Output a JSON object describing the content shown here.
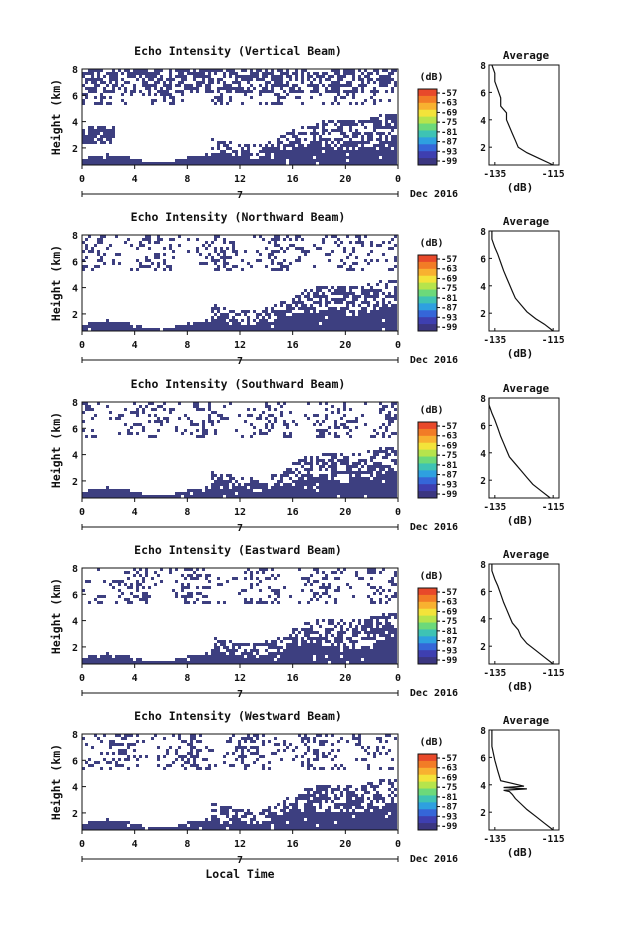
{
  "figure": {
    "xlabel": "Local Time",
    "date_label": "Dec 2016",
    "day_label": "7",
    "x_ticks": [
      "0",
      "4",
      "8",
      "12",
      "16",
      "20",
      "0"
    ],
    "colorbar_unit": "(dB)",
    "colorbar_ticks": [
      "-57",
      "-63",
      "-69",
      "-75",
      "-81",
      "-87",
      "-93",
      "-99"
    ],
    "colorbar_colors": [
      "#e8492a",
      "#f27c26",
      "#f8b130",
      "#f3e33a",
      "#b6e44c",
      "#6cd97a",
      "#3ec3b4",
      "#2ea0e0",
      "#3566d8",
      "#3e3fb0",
      "#3b3680"
    ],
    "avg_title": "Average",
    "avg_xticks": [
      "-135",
      "-115"
    ],
    "avg_xlabel": "(dB)",
    "echo_color": "#3d3f80"
  },
  "chart_data": [
    {
      "type": "heatmap",
      "title": "Echo Intensity (Vertical Beam)",
      "ylabel": "Height (km)",
      "y_ticks": [
        "2",
        "4",
        "6",
        "8"
      ],
      "xlim": [
        0,
        24
      ],
      "ylim": [
        0.7,
        8
      ],
      "avg": {
        "x": [
          -115,
          -120,
          -124,
          -127,
          -128,
          -129,
          -130,
          -131,
          -131,
          -133,
          -133,
          -134,
          -135,
          -135,
          -136
        ],
        "y": [
          0.7,
          1.2,
          1.6,
          2.0,
          2.5,
          3.0,
          3.5,
          4.0,
          4.5,
          5.0,
          5.6,
          6.2,
          6.8,
          7.4,
          8.0
        ]
      }
    },
    {
      "type": "heatmap",
      "title": "Echo Intensity (Northward Beam)",
      "ylabel": "Height (km)",
      "y_ticks": [
        "2",
        "4",
        "6",
        "8"
      ],
      "xlim": [
        0,
        24
      ],
      "ylim": [
        0.7,
        8
      ],
      "avg": {
        "x": [
          -115,
          -118,
          -121,
          -124,
          -126,
          -128,
          -129,
          -130,
          -131,
          -132,
          -133,
          -134,
          -135,
          -136,
          -136
        ],
        "y": [
          0.7,
          1.2,
          1.6,
          2.1,
          2.6,
          3.1,
          3.6,
          4.1,
          4.6,
          5.1,
          5.7,
          6.3,
          6.8,
          7.4,
          8.0
        ]
      }
    },
    {
      "type": "heatmap",
      "title": "Echo Intensity (Southward Beam)",
      "ylabel": "Height (km)",
      "y_ticks": [
        "2",
        "4",
        "6",
        "8"
      ],
      "xlim": [
        0,
        24
      ],
      "ylim": [
        0.7,
        8
      ],
      "avg": {
        "x": [
          -116,
          -119,
          -122,
          -124,
          -126,
          -128,
          -130,
          -131,
          -132,
          -133,
          -134,
          -135,
          -136,
          -137,
          -137
        ],
        "y": [
          0.7,
          1.2,
          1.7,
          2.2,
          2.7,
          3.2,
          3.7,
          4.2,
          4.7,
          5.2,
          5.8,
          6.4,
          6.9,
          7.5,
          8.0
        ]
      }
    },
    {
      "type": "heatmap",
      "title": "Echo Intensity (Eastward Beam)",
      "ylabel": "Height (km)",
      "y_ticks": [
        "2",
        "4",
        "6",
        "8"
      ],
      "xlim": [
        0,
        24
      ],
      "ylim": [
        0.7,
        8
      ],
      "avg": {
        "x": [
          -115,
          -118,
          -121,
          -124,
          -126,
          -127,
          -129,
          -130,
          -131,
          -132,
          -133,
          -134,
          -135,
          -136,
          -136
        ],
        "y": [
          0.7,
          1.2,
          1.7,
          2.2,
          2.7,
          3.2,
          3.7,
          4.2,
          4.7,
          5.2,
          5.8,
          6.4,
          6.9,
          7.5,
          8.0
        ]
      }
    },
    {
      "type": "heatmap",
      "title": "Echo Intensity (Westward Beam)",
      "ylabel": "Height (km)",
      "y_ticks": [
        "2",
        "4",
        "6",
        "8"
      ],
      "xlim": [
        0,
        24
      ],
      "ylim": [
        0.7,
        8
      ],
      "avg": {
        "x": [
          -115,
          -118,
          -121,
          -124,
          -126,
          -128,
          -129,
          -130,
          -132,
          -124,
          -132,
          -125,
          -133,
          -134,
          -135,
          -136,
          -136
        ],
        "y": [
          0.7,
          1.2,
          1.7,
          2.2,
          2.6,
          3.0,
          3.3,
          3.5,
          3.6,
          3.7,
          3.8,
          3.9,
          4.3,
          5.0,
          5.8,
          6.8,
          8.0
        ]
      }
    }
  ]
}
